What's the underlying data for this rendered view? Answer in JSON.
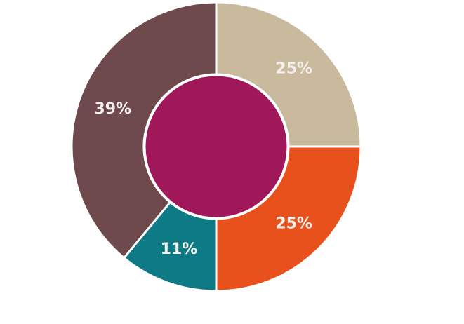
{
  "chart_data": {
    "type": "donut",
    "values": [
      25,
      25,
      11,
      39
    ],
    "value_labels": [
      "25%",
      "25%",
      "11%",
      "39%"
    ],
    "colors": [
      "#c9b99d",
      "#e8501c",
      "#0e7a86",
      "#6e4a4c"
    ],
    "center_color": "#a0185a"
  }
}
